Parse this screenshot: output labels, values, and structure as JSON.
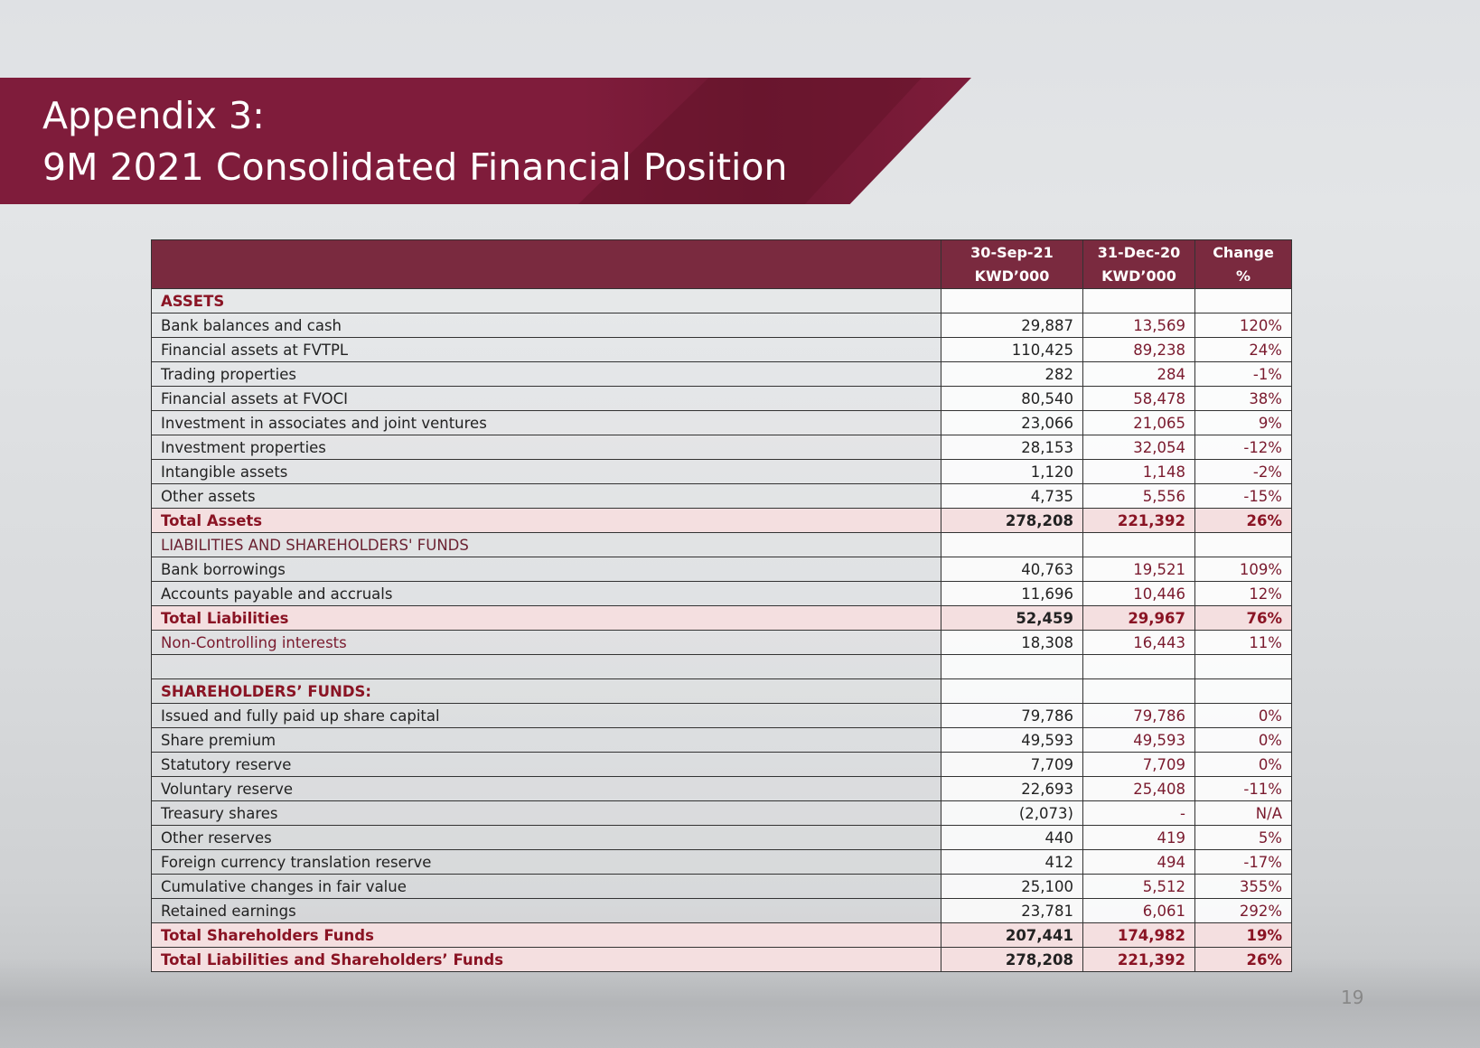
{
  "slide": {
    "title_line1": "Appendix 3:",
    "title_line2": "9M 2021 Consolidated Financial Position",
    "page_number": "19",
    "brand_color": "#7f1c3b"
  },
  "table": {
    "headers": [
      {
        "line1": "",
        "line2": ""
      },
      {
        "line1": "30-Sep-21",
        "line2": "KWD’000"
      },
      {
        "line1": "31-Dec-20",
        "line2": "KWD’000"
      },
      {
        "line1": "Change",
        "line2": "%"
      }
    ],
    "rows": [
      {
        "type": "section",
        "label": "ASSETS",
        "v1": "",
        "v2": "",
        "v3": ""
      },
      {
        "type": "item",
        "label": "Bank balances and cash",
        "v1": "29,887",
        "v2": "13,569",
        "v3": "120%"
      },
      {
        "type": "item",
        "label": "Financial assets at FVTPL",
        "v1": "110,425",
        "v2": "89,238",
        "v3": "24%"
      },
      {
        "type": "item",
        "label": "Trading properties",
        "v1": "282",
        "v2": "284",
        "v3": "-1%"
      },
      {
        "type": "item",
        "label": "Financial assets at FVOCI",
        "v1": "80,540",
        "v2": "58,478",
        "v3": "38%"
      },
      {
        "type": "item",
        "label": "Investment in associates and joint ventures",
        "v1": "23,066",
        "v2": "21,065",
        "v3": "9%"
      },
      {
        "type": "item",
        "label": "Investment properties",
        "v1": "28,153",
        "v2": "32,054",
        "v3": "-12%"
      },
      {
        "type": "item",
        "label": "Intangible assets",
        "v1": "1,120",
        "v2": "1,148",
        "v3": "-2%"
      },
      {
        "type": "item",
        "label": "Other assets",
        "v1": "4,735",
        "v2": "5,556",
        "v3": "-15%"
      },
      {
        "type": "total",
        "label": "Total Assets",
        "v1": "278,208",
        "v2": "221,392",
        "v3": "26%"
      },
      {
        "type": "section2",
        "label": "LIABILITIES AND SHAREHOLDERS' FUNDS",
        "v1": "",
        "v2": "",
        "v3": ""
      },
      {
        "type": "item",
        "label": "Bank borrowings",
        "v1": "40,763",
        "v2": "19,521",
        "v3": "109%"
      },
      {
        "type": "item",
        "label": "Accounts payable and accruals",
        "v1": "11,696",
        "v2": "10,446",
        "v3": "12%"
      },
      {
        "type": "total",
        "label": "Total Liabilities",
        "v1": "52,459",
        "v2": "29,967",
        "v3": "76%"
      },
      {
        "type": "nci",
        "label": "Non-Controlling interests",
        "v1": "18,308",
        "v2": "16,443",
        "v3": "11%"
      },
      {
        "type": "blank",
        "label": "",
        "v1": "",
        "v2": "",
        "v3": ""
      },
      {
        "type": "section",
        "label": "SHAREHOLDERS’ FUNDS:",
        "v1": "",
        "v2": "",
        "v3": ""
      },
      {
        "type": "item",
        "label": "Issued and fully paid up share capital",
        "v1": "79,786",
        "v2": "79,786",
        "v3": "0%"
      },
      {
        "type": "item",
        "label": "Share premium",
        "v1": "49,593",
        "v2": "49,593",
        "v3": "0%"
      },
      {
        "type": "item",
        "label": "Statutory reserve",
        "v1": "7,709",
        "v2": "7,709",
        "v3": "0%"
      },
      {
        "type": "item",
        "label": "Voluntary reserve",
        "v1": "22,693",
        "v2": "25,408",
        "v3": "-11%"
      },
      {
        "type": "item",
        "label": "Treasury shares",
        "v1": "(2,073)",
        "v2": "-",
        "v3": "N/A"
      },
      {
        "type": "item",
        "label": "Other reserves",
        "v1": "440",
        "v2": "419",
        "v3": "5%"
      },
      {
        "type": "item",
        "label": "Foreign currency translation reserve",
        "v1": "412",
        "v2": "494",
        "v3": "-17%"
      },
      {
        "type": "item",
        "label": "Cumulative changes in fair value",
        "v1": "25,100",
        "v2": "5,512",
        "v3": "355%"
      },
      {
        "type": "item",
        "label": "Retained earnings",
        "v1": "23,781",
        "v2": "6,061",
        "v3": "292%"
      },
      {
        "type": "total",
        "label": "Total Shareholders Funds",
        "v1": "207,441",
        "v2": "174,982",
        "v3": "19%"
      },
      {
        "type": "total",
        "label": "Total Liabilities and Shareholders’ Funds",
        "v1": "278,208",
        "v2": "221,392",
        "v3": "26%"
      }
    ]
  }
}
